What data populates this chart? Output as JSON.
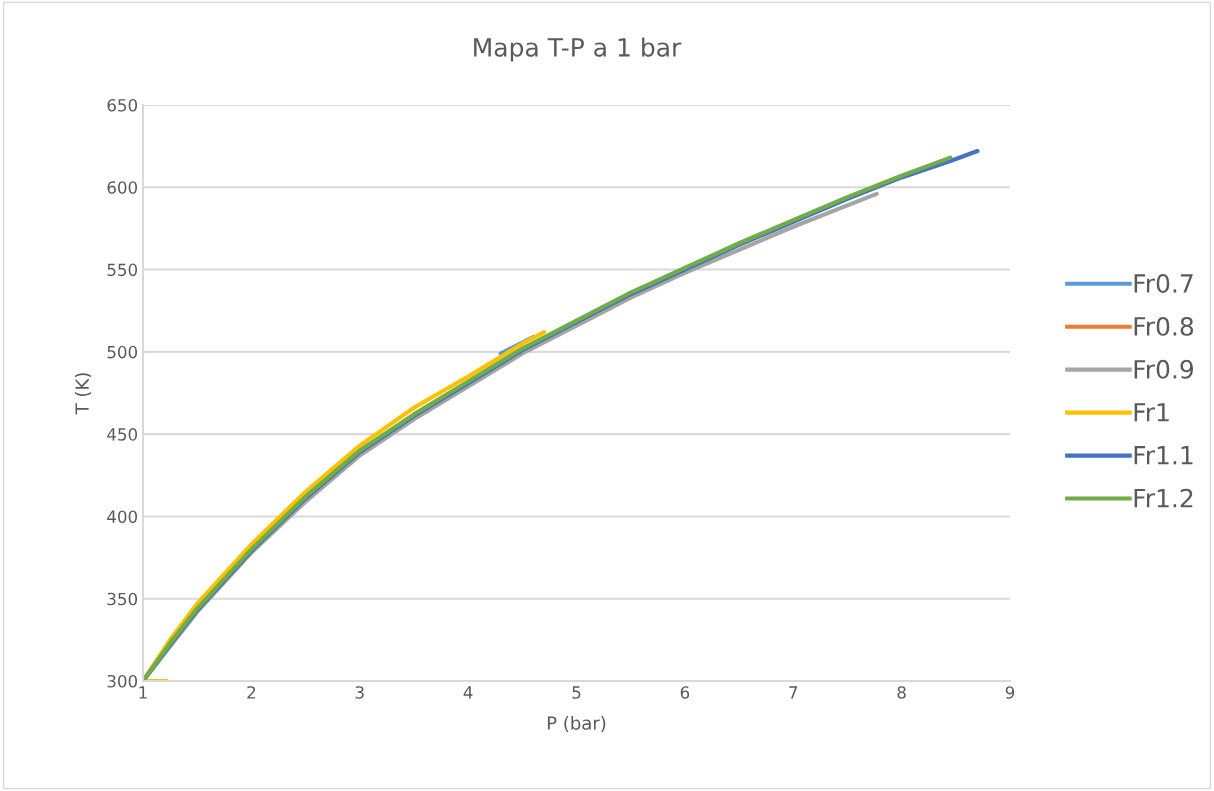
{
  "chart_data": {
    "type": "line",
    "title": "Mapa T-P a 1 bar",
    "xlabel": "P (bar)",
    "ylabel": "T (K)",
    "xlim": [
      1,
      9
    ],
    "xticks": [
      1,
      2,
      3,
      4,
      5,
      6,
      7,
      8,
      9
    ],
    "ylim": [
      300,
      650
    ],
    "yticks": [
      300,
      350,
      400,
      450,
      500,
      550,
      600,
      650
    ],
    "grid": "y",
    "legend": "right",
    "marker": "none",
    "line_style": "solid",
    "series": [
      {
        "name": "Fr0.7",
        "color": "#5b9bd5",
        "x": [
          4.3,
          4.6
        ],
        "values": [
          499,
          509
        ]
      },
      {
        "name": "Fr0.8",
        "color": "#ed7d31"
      },
      {
        "name": "Fr0.9",
        "color": "#a5a5a5",
        "x": [
          1,
          1.25,
          1.5,
          2,
          2.5,
          3,
          3.5,
          4,
          4.5,
          5,
          5.5,
          6,
          6.5,
          7,
          7.5,
          7.77
        ],
        "values": [
          300,
          321,
          342,
          378,
          409,
          437,
          459,
          479,
          499,
          516,
          533,
          548,
          562,
          576,
          589,
          596
        ]
      },
      {
        "name": "Fr1",
        "color": "#ffc000",
        "x": [
          1.22,
          1,
          1.25,
          1.5,
          2,
          2.5,
          3,
          3.5,
          4,
          4.5,
          4.7
        ],
        "values": [
          300,
          300,
          325,
          347,
          383,
          415,
          443,
          466,
          485,
          505,
          512
        ]
      },
      {
        "name": "Fr1.1",
        "color": "#4472c4",
        "x": [
          1,
          1.25,
          1.5,
          2,
          2.5,
          3,
          3.5,
          4,
          4.5,
          5,
          5.5,
          6,
          6.5,
          7,
          7.5,
          8,
          8.45,
          8.7
        ],
        "values": [
          300,
          322,
          343,
          379,
          411,
          439,
          461,
          481,
          501,
          518,
          535,
          550,
          565,
          579,
          593,
          606,
          616,
          622
        ]
      },
      {
        "name": "Fr1.2",
        "color": "#70ad47",
        "x": [
          1,
          1.25,
          1.5,
          2,
          2.5,
          3,
          3.5,
          4,
          4.5,
          5,
          5.5,
          6,
          6.5,
          7,
          7.5,
          8,
          8.45
        ],
        "values": [
          300,
          323,
          344,
          380,
          412,
          440,
          462,
          482,
          502,
          519,
          536,
          551,
          566,
          580,
          594,
          607,
          618
        ]
      }
    ]
  }
}
